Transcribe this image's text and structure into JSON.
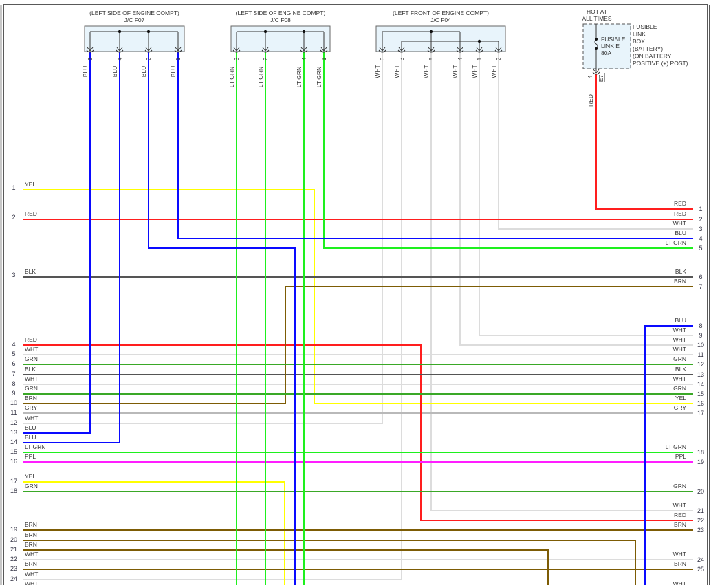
{
  "wire_colors": {
    "BLU": "#0a0aff",
    "LT GRN": "#1ef01e",
    "WHT": "#dcdcdc",
    "RED": "#ff1e1e",
    "BLK": "#555555",
    "BRN": "#7d5c05",
    "GRN": "#3aa827",
    "YEL": "#ffff00",
    "GRY": "#b9b9b9",
    "PPL": "#ff1eff"
  },
  "connectors": [
    {
      "location": "(LEFT SIDE OF ENGINE COMPT)",
      "name": "J/C F07",
      "pins": [
        {
          "pin": "3",
          "wire": "BLU"
        },
        {
          "pin": "4",
          "wire": "BLU"
        },
        {
          "pin": "2",
          "wire": "BLU"
        },
        {
          "pin": "1",
          "wire": "BLU"
        }
      ]
    },
    {
      "location": "(LEFT SIDE OF ENGINE COMPT)",
      "name": "J/C F08",
      "pins": [
        {
          "pin": "3",
          "wire": "LT GRN"
        },
        {
          "pin": "2",
          "wire": "LT GRN"
        },
        {
          "pin": "4",
          "wire": "LT GRN"
        },
        {
          "pin": "1",
          "wire": "LT GRN"
        }
      ]
    },
    {
      "location": "(LEFT FRONT OF ENGINE COMPT)",
      "name": "J/C F04",
      "pins": [
        {
          "pin": "6",
          "wire": "WHT"
        },
        {
          "pin": "3",
          "wire": "WHT"
        },
        {
          "pin": "5",
          "wire": "WHT"
        },
        {
          "pin": "4",
          "wire": "WHT"
        },
        {
          "pin": "1",
          "wire": "WHT"
        },
        {
          "pin": "2",
          "wire": "WHT"
        }
      ]
    }
  ],
  "fuse_box": {
    "hot_label": [
      "HOT AT",
      "ALL TIMES"
    ],
    "fuse_label": [
      "FUSIBLE",
      "LINK E",
      "80A"
    ],
    "box_label": [
      "FUSIBLE",
      "LINK",
      "BOX",
      "(BATTERY)",
      "(ON BATTERY",
      "POSITIVE (+) POST)"
    ],
    "pin": "4",
    "connector": "E7",
    "wire": "RED"
  },
  "left_rows": [
    {
      "num": "1",
      "wire": "YEL"
    },
    {
      "num": "2",
      "wire": "RED"
    },
    {
      "num": "3",
      "wire": "BLK"
    },
    {
      "num": "4",
      "wire": "RED"
    },
    {
      "num": "5",
      "wire": "WHT"
    },
    {
      "num": "6",
      "wire": "GRN"
    },
    {
      "num": "7",
      "wire": "BLK"
    },
    {
      "num": "8",
      "wire": "WHT"
    },
    {
      "num": "9",
      "wire": "GRN"
    },
    {
      "num": "10",
      "wire": "BRN"
    },
    {
      "num": "11",
      "wire": "GRY"
    },
    {
      "num": "12",
      "wire": "WHT"
    },
    {
      "num": "13",
      "wire": "BLU"
    },
    {
      "num": "14",
      "wire": "BLU"
    },
    {
      "num": "15",
      "wire": "LT GRN"
    },
    {
      "num": "16",
      "wire": "PPL"
    },
    {
      "num": "17",
      "wire": "YEL"
    },
    {
      "num": "18",
      "wire": "GRN"
    },
    {
      "num": "19",
      "wire": "BRN"
    },
    {
      "num": "20",
      "wire": "BRN"
    },
    {
      "num": "21",
      "wire": "BRN"
    },
    {
      "num": "22",
      "wire": "WHT"
    },
    {
      "num": "23",
      "wire": "BRN"
    },
    {
      "num": "24",
      "wire": "WHT"
    },
    {
      "num": "",
      "wire": "WHT"
    }
  ],
  "right_rows": [
    {
      "num": "1",
      "wire": "RED"
    },
    {
      "num": "2",
      "wire": "RED"
    },
    {
      "num": "3",
      "wire": "WHT"
    },
    {
      "num": "4",
      "wire": "BLU"
    },
    {
      "num": "5",
      "wire": "LT GRN"
    },
    {
      "num": "6",
      "wire": "BLK"
    },
    {
      "num": "7",
      "wire": "BRN"
    },
    {
      "num": "8",
      "wire": "BLU"
    },
    {
      "num": "9",
      "wire": "WHT"
    },
    {
      "num": "10",
      "wire": "WHT"
    },
    {
      "num": "11",
      "wire": "WHT"
    },
    {
      "num": "12",
      "wire": "GRN"
    },
    {
      "num": "13",
      "wire": "BLK"
    },
    {
      "num": "14",
      "wire": "WHT"
    },
    {
      "num": "15",
      "wire": "GRN"
    },
    {
      "num": "16",
      "wire": "YEL"
    },
    {
      "num": "17",
      "wire": "GRY"
    },
    {
      "num": "18",
      "wire": "LT GRN"
    },
    {
      "num": "19",
      "wire": "PPL"
    },
    {
      "num": "20",
      "wire": "GRN"
    },
    {
      "num": "21",
      "wire": "WHT"
    },
    {
      "num": "22",
      "wire": "RED"
    },
    {
      "num": "23",
      "wire": "BRN"
    },
    {
      "num": "24",
      "wire": "WHT"
    },
    {
      "num": "25",
      "wire": "BRN"
    },
    {
      "num": "",
      "wire": "WHT"
    }
  ]
}
